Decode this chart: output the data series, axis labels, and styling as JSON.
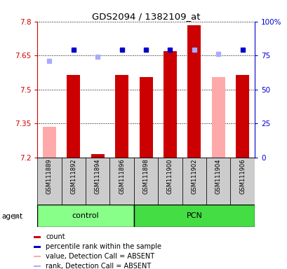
{
  "title": "GDS2094 / 1382109_at",
  "samples": [
    "GSM111889",
    "GSM111892",
    "GSM111894",
    "GSM111896",
    "GSM111898",
    "GSM111900",
    "GSM111902",
    "GSM111904",
    "GSM111906"
  ],
  "ylim_left": [
    7.2,
    7.8
  ],
  "ylim_right": [
    0,
    100
  ],
  "yticks_left": [
    7.2,
    7.35,
    7.5,
    7.65,
    7.8
  ],
  "yticks_right": [
    0,
    25,
    50,
    75,
    100
  ],
  "ytick_labels_left": [
    "7.2",
    "7.35",
    "7.5",
    "7.65",
    "7.8"
  ],
  "ytick_labels_right": [
    "0",
    "25",
    "50",
    "75",
    "100%"
  ],
  "bar_values": [
    null,
    7.565,
    7.215,
    7.565,
    7.555,
    7.67,
    7.785,
    null,
    7.565
  ],
  "bar_absent_values": [
    7.335,
    null,
    null,
    null,
    null,
    null,
    null,
    7.555,
    null
  ],
  "bar_color_present": "#cc0000",
  "bar_color_absent": "#ffaaaa",
  "rank_present": [
    null,
    79,
    null,
    79,
    79,
    79,
    79,
    null,
    79
  ],
  "rank_absent": [
    71,
    null,
    74,
    null,
    null,
    null,
    79,
    76,
    null
  ],
  "rank_color_present": "#0000cc",
  "rank_color_absent": "#aaaaff",
  "bar_bottom": 7.2,
  "bar_width": 0.55,
  "left_axis_color": "#cc0000",
  "right_axis_color": "#0000cc",
  "bg_xlabels": "#cccccc",
  "control_color": "#88ff88",
  "pcn_color": "#44dd44",
  "legend_items": [
    [
      "#cc0000",
      "count"
    ],
    [
      "#0000cc",
      "percentile rank within the sample"
    ],
    [
      "#ffaaaa",
      "value, Detection Call = ABSENT"
    ],
    [
      "#aaaaff",
      "rank, Detection Call = ABSENT"
    ]
  ]
}
